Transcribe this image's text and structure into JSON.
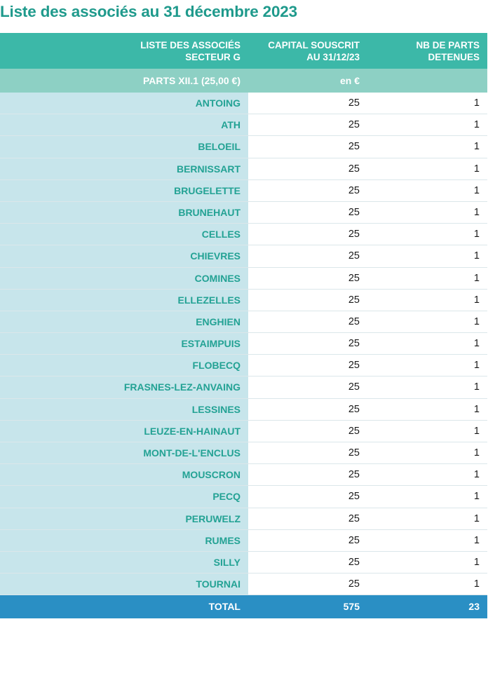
{
  "page": {
    "title": "Liste des associés au 31 décembre 2023"
  },
  "header": {
    "col1_line1": "LISTE DES ASSOCIÉS",
    "col1_line2": "SECTEUR G",
    "col2_line1": "CAPITAL SOUSCRIT",
    "col2_line2": "AU 31/12/23",
    "col3_line1": "NB DE PARTS",
    "col3_line2": "DETENUES"
  },
  "subheader": {
    "category": "PARTS XII.1 (25,00 €)",
    "unit": "en €",
    "parts": ""
  },
  "rows": [
    {
      "name": "ANTOING",
      "capital": "25",
      "parts": "1"
    },
    {
      "name": "ATH",
      "capital": "25",
      "parts": "1"
    },
    {
      "name": "BELOEIL",
      "capital": "25",
      "parts": "1"
    },
    {
      "name": "BERNISSART",
      "capital": "25",
      "parts": "1"
    },
    {
      "name": "BRUGELETTE",
      "capital": "25",
      "parts": "1"
    },
    {
      "name": "BRUNEHAUT",
      "capital": "25",
      "parts": "1"
    },
    {
      "name": "CELLES",
      "capital": "25",
      "parts": "1"
    },
    {
      "name": "CHIEVRES",
      "capital": "25",
      "parts": "1"
    },
    {
      "name": "COMINES",
      "capital": "25",
      "parts": "1"
    },
    {
      "name": "ELLEZELLES",
      "capital": "25",
      "parts": "1"
    },
    {
      "name": "ENGHIEN",
      "capital": "25",
      "parts": "1"
    },
    {
      "name": "ESTAIMPUIS",
      "capital": "25",
      "parts": "1"
    },
    {
      "name": "FLOBECQ",
      "capital": "25",
      "parts": "1"
    },
    {
      "name": "FRASNES-LEZ-ANVAING",
      "capital": "25",
      "parts": "1"
    },
    {
      "name": "LESSINES",
      "capital": "25",
      "parts": "1"
    },
    {
      "name": "LEUZE-EN-HAINAUT",
      "capital": "25",
      "parts": "1"
    },
    {
      "name": "MONT-DE-L'ENCLUS",
      "capital": "25",
      "parts": "1"
    },
    {
      "name": "MOUSCRON",
      "capital": "25",
      "parts": "1"
    },
    {
      "name": "PECQ",
      "capital": "25",
      "parts": "1"
    },
    {
      "name": "PERUWELZ",
      "capital": "25",
      "parts": "1"
    },
    {
      "name": "RUMES",
      "capital": "25",
      "parts": "1"
    },
    {
      "name": "SILLY",
      "capital": "25",
      "parts": "1"
    },
    {
      "name": "TOURNAI",
      "capital": "25",
      "parts": "1"
    }
  ],
  "total": {
    "label": "TOTAL",
    "capital": "575",
    "parts": "23"
  },
  "colors": {
    "title": "#1f9a8c",
    "header_bg": "#3cb8a8",
    "subheader_bg": "#8dd0c4",
    "name_cell_bg": "#c7e5eb",
    "name_text": "#23a294",
    "total_bg": "#2a8fc4"
  }
}
